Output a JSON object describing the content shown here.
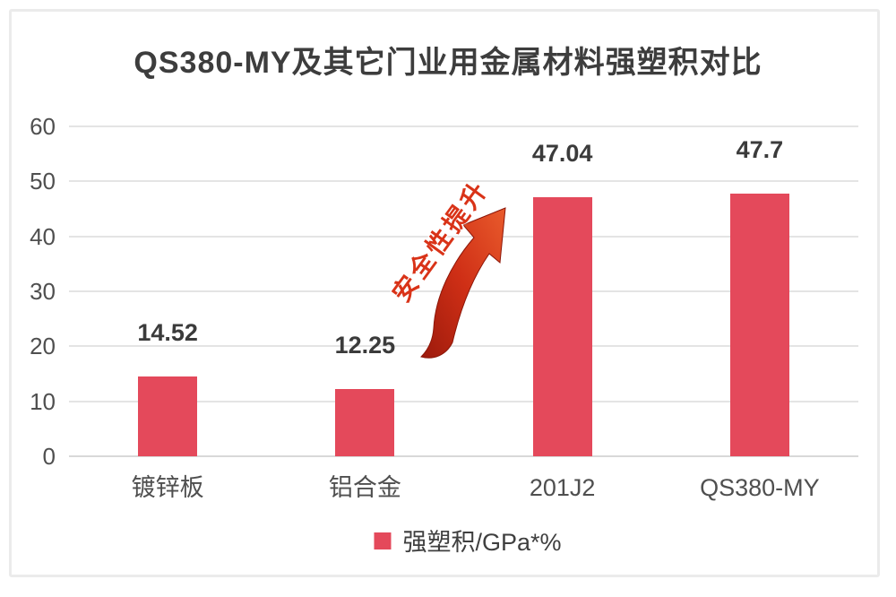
{
  "page": {
    "title": "QS380-MY及其它门业用金属材料强塑积对比"
  },
  "legend": {
    "label": "强塑积/GPa*%"
  },
  "annotation": {
    "text": "安全性提升"
  },
  "colors": {
    "bar": "#e4495b",
    "grid": "#e4e4e4",
    "baseline": "#d8d8d8",
    "axis_text": "#4f4f4f",
    "value_text": "#3b3b3b",
    "annotation_red": "#d93318",
    "arrow_dark": "#9c1a0c",
    "arrow_mid": "#cf2f16",
    "arrow_bright": "#e95b2c"
  },
  "chart_data": {
    "type": "bar",
    "title": "QS380-MY及其它门业用金属材料强塑积对比",
    "categories": [
      "镀锌板",
      "铝合金",
      "201J2",
      "QS380-MY"
    ],
    "values": [
      14.52,
      12.25,
      47.04,
      47.7
    ],
    "series": [
      {
        "name": "强塑积/GPa*%",
        "values": [
          14.52,
          12.25,
          47.04,
          47.7
        ]
      }
    ],
    "data_labels": [
      "14.52",
      "12.25",
      "47.04",
      "47.7"
    ],
    "xlabel": "",
    "ylabel": "",
    "ylim": [
      0,
      60
    ],
    "yticks": [
      0,
      10,
      20,
      30,
      40,
      50,
      60
    ],
    "grid": true,
    "legend_position": "bottom",
    "annotations": [
      {
        "text": "安全性提升",
        "type": "curved-arrow-up",
        "between": [
          "铝合金",
          "201J2"
        ]
      }
    ]
  }
}
